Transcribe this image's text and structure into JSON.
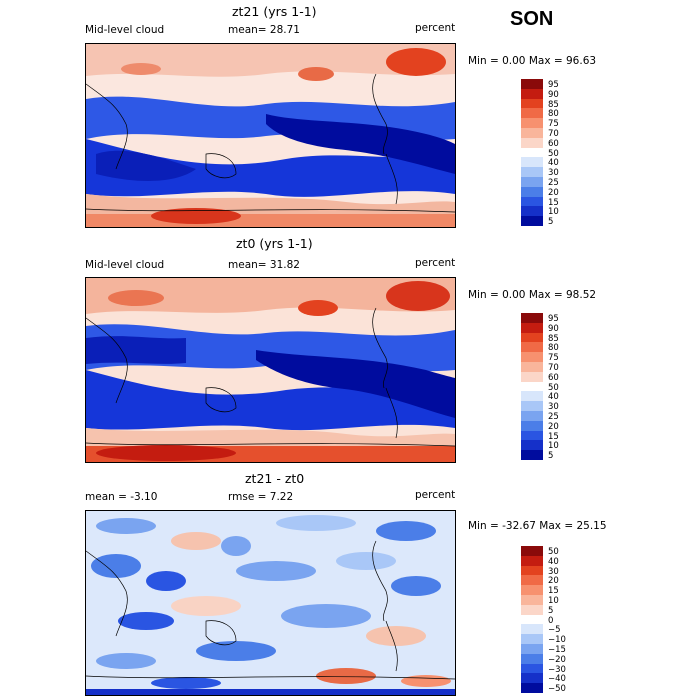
{
  "figure": {
    "season": "SON",
    "colors": {
      "deep_blue": "#000c9e",
      "blue": "#1a3ee0",
      "light_blue": "#a9c7f7",
      "white": "#ffffff",
      "salmon": "#f7b7a3",
      "red": "#e3421f",
      "dark_red": "#8a0a0a"
    }
  },
  "panels": [
    {
      "title": "zt21 (yrs 1-1)",
      "left_label": "Mid-level cloud",
      "center_label": "mean=  28.71",
      "right_label": "percent",
      "minmax": "Min =    0.00 Max =   96.63"
    },
    {
      "title": "zt0 (yrs 1-1)",
      "left_label": "Mid-level cloud",
      "center_label": "mean=  31.82",
      "right_label": "percent",
      "minmax": "Min =    0.00 Max =   98.52"
    },
    {
      "title": "zt21 - zt0",
      "left_label": "mean =   -3.10",
      "center_label": "rmse =    7.22",
      "right_label": "percent",
      "minmax": "Min = -32.67 Max =  25.15"
    }
  ],
  "chart_data": [
    {
      "type": "heatmap",
      "title": "zt21 (yrs 1-1)",
      "field": "Mid-level cloud",
      "units": "percent",
      "mean": 28.71,
      "min": 0.0,
      "max": 96.63,
      "colorbar_levels": [
        "95",
        "90",
        "85",
        "80",
        "75",
        "70",
        "60",
        "50",
        "40",
        "30",
        "25",
        "20",
        "15",
        "10",
        "5"
      ]
    },
    {
      "type": "heatmap",
      "title": "zt0 (yrs 1-1)",
      "field": "Mid-level cloud",
      "units": "percent",
      "mean": 31.82,
      "min": 0.0,
      "max": 98.52,
      "colorbar_levels": [
        "95",
        "90",
        "85",
        "80",
        "75",
        "70",
        "60",
        "50",
        "40",
        "30",
        "25",
        "20",
        "15",
        "10",
        "5"
      ]
    },
    {
      "type": "heatmap",
      "title": "zt21 - zt0",
      "units": "percent",
      "mean": -3.1,
      "rmse": 7.22,
      "min": -32.67,
      "max": 25.15,
      "colorbar_levels": [
        "50",
        "40",
        "30",
        "20",
        "15",
        "10",
        "5",
        "0",
        "−5",
        "−10",
        "−15",
        "−20",
        "−30",
        "−40",
        "−50"
      ]
    }
  ]
}
